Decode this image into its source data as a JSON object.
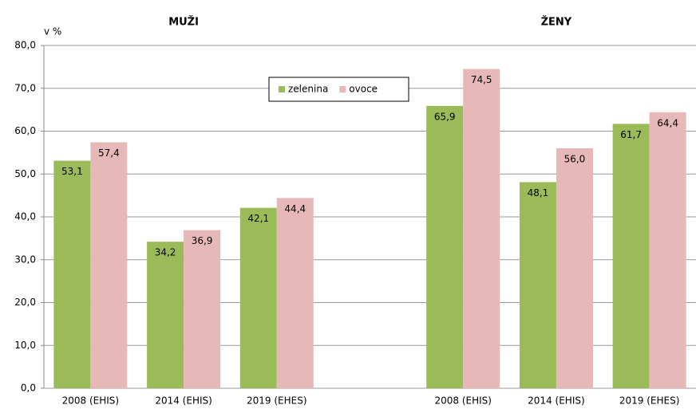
{
  "chart_data": {
    "type": "bar",
    "y_label": "v %",
    "group_titles": [
      "MUŽI",
      "ŽENY"
    ],
    "categories": [
      "2008 (EHIS)",
      "2014 (EHIS)",
      "2019 (EHES)",
      null,
      "2008 (EHIS)",
      "2014 (EHIS)",
      "2019 (EHES)"
    ],
    "series": [
      {
        "name": "zelenina",
        "color": "#9bbb59",
        "values": [
          53.1,
          34.2,
          42.1,
          null,
          65.9,
          48.1,
          61.7
        ],
        "value_labels": [
          "53,1",
          "34,2",
          "42,1",
          null,
          "65,9",
          "48,1",
          "61,7"
        ]
      },
      {
        "name": "ovoce",
        "color": "#e6b9b8",
        "values": [
          57.4,
          36.9,
          44.4,
          null,
          74.5,
          56.0,
          64.4
        ],
        "value_labels": [
          "57,4",
          "36,9",
          "44,4",
          null,
          "74,5",
          "56,0",
          "64,4"
        ]
      }
    ],
    "ylim": [
      0,
      80
    ],
    "yticks": [
      {
        "value": 0,
        "label": "0,0"
      },
      {
        "value": 10,
        "label": "10,0"
      },
      {
        "value": 20,
        "label": "20,0"
      },
      {
        "value": 30,
        "label": "30,0"
      },
      {
        "value": 40,
        "label": "40,0"
      },
      {
        "value": 50,
        "label": "50,0"
      },
      {
        "value": 60,
        "label": "60,0"
      },
      {
        "value": 70,
        "label": "70,0"
      },
      {
        "value": 80,
        "label": "80,0"
      }
    ],
    "grid": true,
    "legend": "top"
  }
}
